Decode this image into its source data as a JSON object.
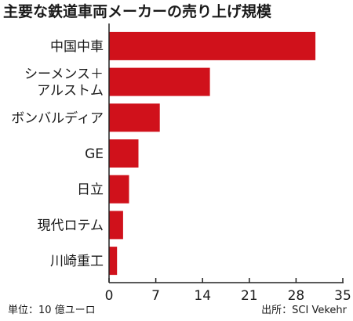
{
  "chart_data": {
    "type": "bar",
    "orientation": "horizontal",
    "title": "主要な鉄道車両メーカーの売り上げ規模",
    "categories": [
      [
        "中国中車"
      ],
      [
        "シーメンス＋",
        "アルストム"
      ],
      [
        "ボンバルディア"
      ],
      [
        "GE"
      ],
      [
        "日立"
      ],
      [
        "現代ロテム"
      ],
      [
        "川崎重工"
      ]
    ],
    "values": [
      30.9,
      15.1,
      7.6,
      4.4,
      3.0,
      2.1,
      1.2
    ],
    "xlim": [
      0,
      35
    ],
    "xticks": [
      "0",
      "7",
      "14",
      "21",
      "28",
      "35"
    ],
    "xtick_values": [
      0,
      7,
      14,
      21,
      28,
      35
    ],
    "xlabel": "",
    "ylabel": "",
    "grid": false,
    "bar_color": "#d0111b"
  },
  "footnotes": {
    "unit": "単位：10 億ユーロ",
    "source": "出所：SCI Vekehr"
  }
}
